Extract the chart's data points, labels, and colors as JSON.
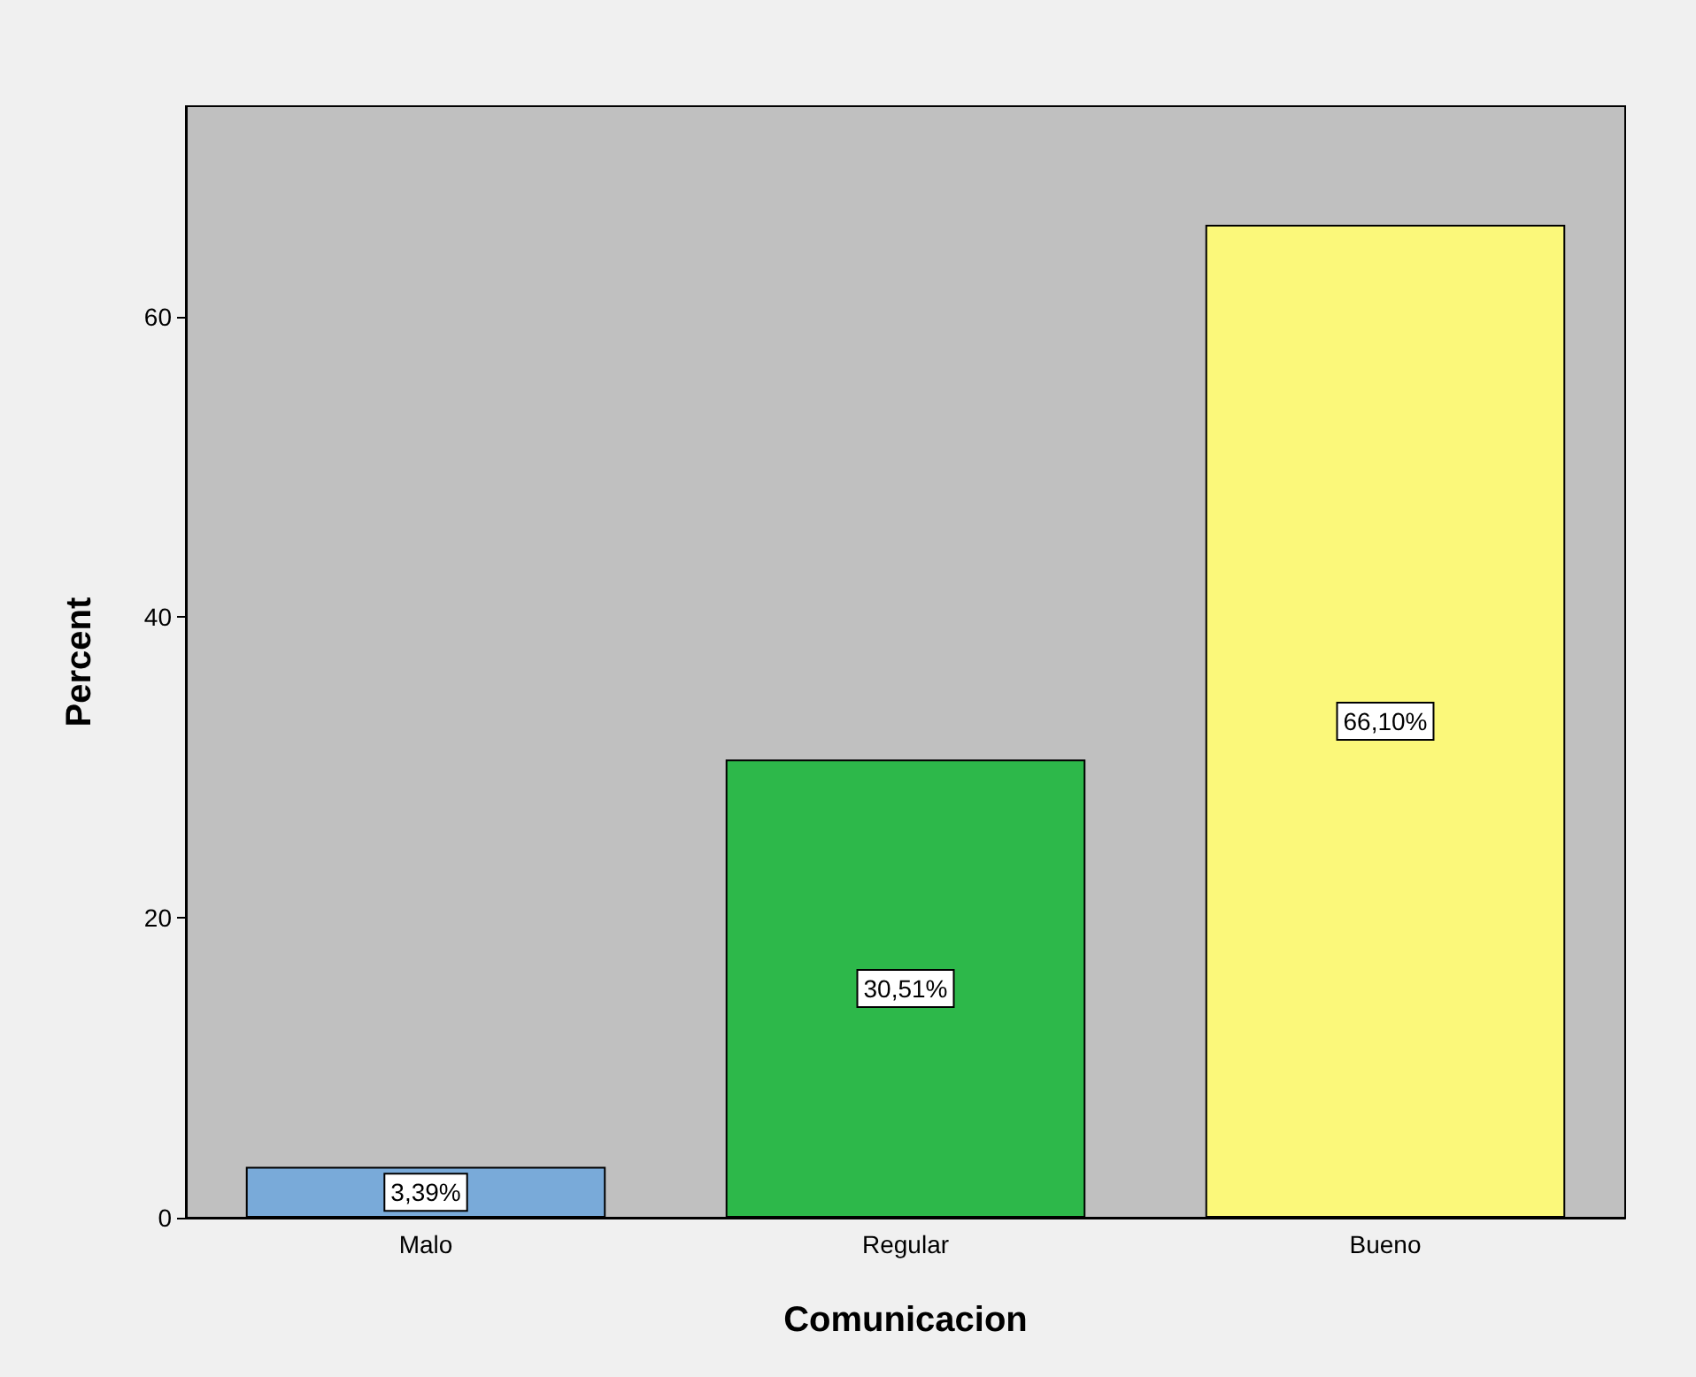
{
  "chart_data": {
    "type": "bar",
    "xlabel": "Comunicacion",
    "ylabel": "Percent",
    "categories": [
      "Malo",
      "Regular",
      "Bueno"
    ],
    "values": [
      3.39,
      30.51,
      66.1
    ],
    "colors": [
      "#79aad9",
      "#2db84a",
      "#fbf87a"
    ],
    "value_labels": [
      "3,39%",
      "30,51%",
      "66,10%"
    ],
    "ylim": [
      0,
      74
    ],
    "yticks": [
      0,
      20,
      40,
      60
    ]
  }
}
